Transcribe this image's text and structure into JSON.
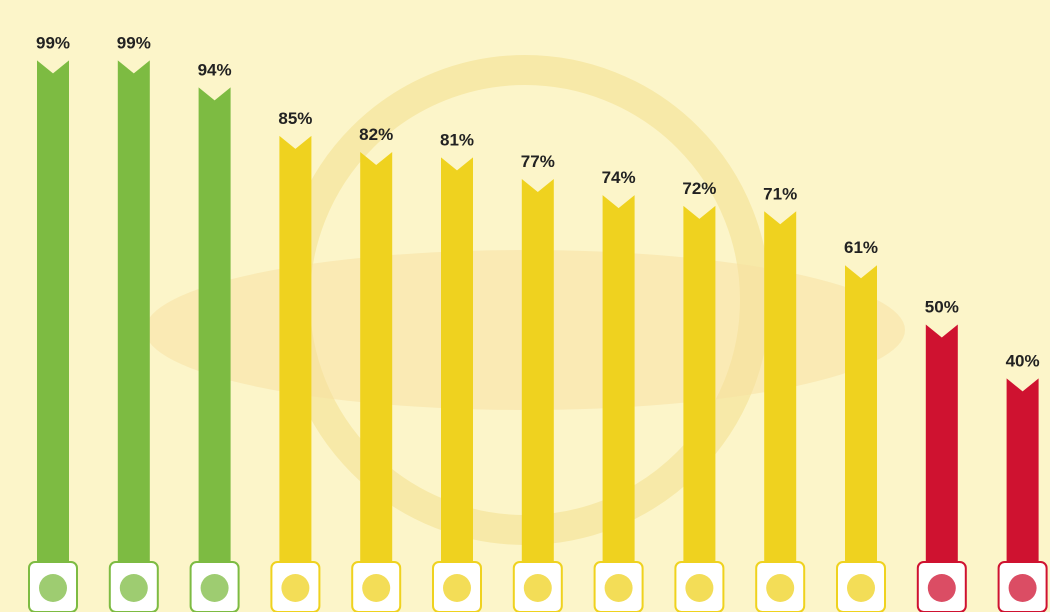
{
  "chart_data": {
    "type": "bar",
    "categories": [
      null,
      null,
      null,
      null,
      null,
      null,
      null,
      null,
      null,
      null,
      null,
      null,
      null
    ],
    "values": [
      99,
      99,
      94,
      85,
      82,
      81,
      77,
      74,
      72,
      71,
      61,
      50,
      40
    ],
    "value_labels": [
      "99%",
      "99%",
      "94%",
      "85%",
      "82%",
      "81%",
      "77%",
      "74%",
      "72%",
      "71%",
      "61%",
      "50%",
      "40%"
    ],
    "colors": [
      "#7dbb42",
      "#7dbb42",
      "#7dbb42",
      "#efd21f",
      "#efd21f",
      "#efd21f",
      "#efd21f",
      "#efd21f",
      "#efd21f",
      "#efd21f",
      "#efd21f",
      "#cf1230",
      "#cf1230"
    ]
  }
}
